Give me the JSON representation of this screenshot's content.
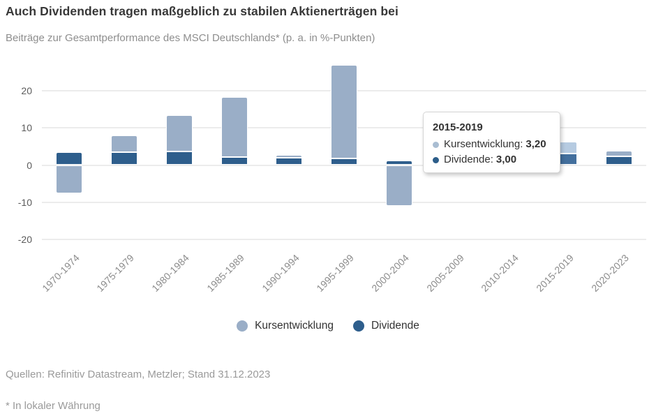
{
  "header": {
    "title": "Auch Dividenden tragen maßgeblich zu stabilen Aktienerträgen bei",
    "subtitle": "Beiträge zur Gesamtperformance des MSCI Deutschlands* (p. a. in %-Punkten)"
  },
  "legend": [
    {
      "label": "Kursentwicklung",
      "color": "#9AAEC7"
    },
    {
      "label": "Dividende",
      "color": "#2E5E8C"
    }
  ],
  "tooltip": {
    "title": "2015-2019",
    "rows": [
      {
        "label": "Kursentwicklung:",
        "value": "3,20",
        "bullet": "#A9BDD2"
      },
      {
        "label": "Dividende:",
        "value": "3,00",
        "bullet": "#2C5D89"
      }
    ]
  },
  "footer": {
    "source": "Quellen: Refinitiv Datastream, Metzler; Stand 31.12.2023",
    "footnote": "* In lokaler Währung"
  },
  "chart_data": {
    "type": "bar",
    "stacked": true,
    "title": "Beiträge zur Gesamtperformance des MSCI Deutschlands* (p. a. in %-Punkten)",
    "categories": [
      "1970-1974",
      "1975-1979",
      "1980-1984",
      "1985-1989",
      "1990-1994",
      "1995-1999",
      "2000-2004",
      "2005-2009",
      "2010-2014",
      "2015-2019",
      "2020-2023"
    ],
    "series": [
      {
        "name": "Kursentwicklung",
        "color": "#9AAEC7",
        "highlight_color": "#B6CBE1",
        "values": [
          -7.5,
          4.5,
          9.7,
          16.1,
          0.9,
          25.2,
          -11.0,
          null,
          null,
          3.2,
          1.5
        ]
      },
      {
        "name": "Dividende",
        "color": "#2E5E8C",
        "highlight_color": "#436F9D",
        "values": [
          3.4,
          3.5,
          3.6,
          2.2,
          1.9,
          1.7,
          1.3,
          null,
          null,
          3.0,
          2.4
        ]
      }
    ],
    "highlighted_category": "2015-2019",
    "hidden_categories_behind_tooltip": [
      "2005-2009",
      "2010-2014"
    ],
    "yticks": [
      20,
      10,
      0,
      -10,
      -20
    ],
    "ylim": [
      -22,
      28
    ],
    "grid": "horizontal",
    "legend_position": "bottom"
  }
}
